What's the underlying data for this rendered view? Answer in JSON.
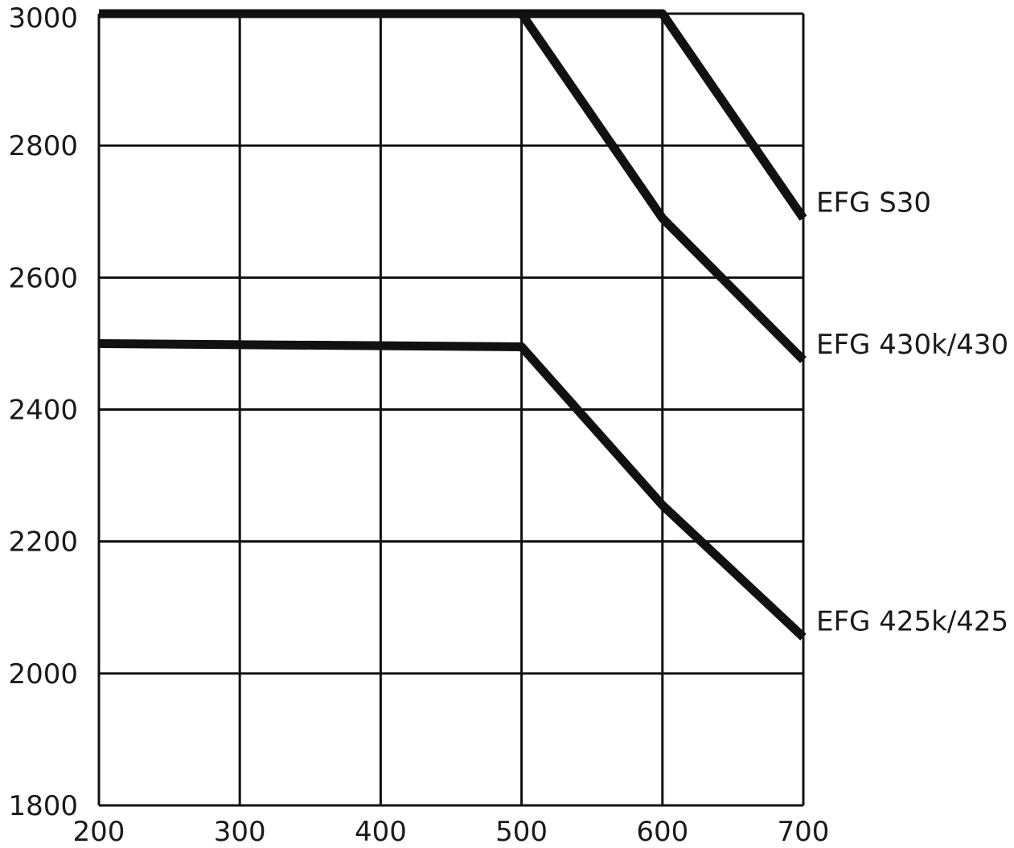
{
  "chart_data": {
    "type": "line",
    "title": "",
    "xlabel": "",
    "ylabel": "",
    "xlim": [
      200,
      700
    ],
    "ylim": [
      1800,
      3000
    ],
    "x_ticks": [
      200,
      300,
      400,
      500,
      600,
      700
    ],
    "y_ticks": [
      1800,
      2000,
      2200,
      2400,
      2600,
      2800,
      3000
    ],
    "grid": true,
    "legend": "inline labels at right end of lines",
    "series": [
      {
        "name": "EFG S30",
        "x": [
          200,
          500,
          600,
          700
        ],
        "y": [
          3000,
          3000,
          3000,
          2690
        ]
      },
      {
        "name": "EFG 430k/430",
        "x": [
          200,
          500,
          600,
          700
        ],
        "y": [
          3000,
          3000,
          2690,
          2475
        ]
      },
      {
        "name": "EFG 425k/425",
        "x": [
          200,
          500,
          600,
          700
        ],
        "y": [
          2500,
          2495,
          2255,
          2055
        ]
      }
    ],
    "colors": {
      "line": "#111111",
      "grid": "#111111",
      "text": "#1a1a1a",
      "background": "#ffffff"
    }
  }
}
